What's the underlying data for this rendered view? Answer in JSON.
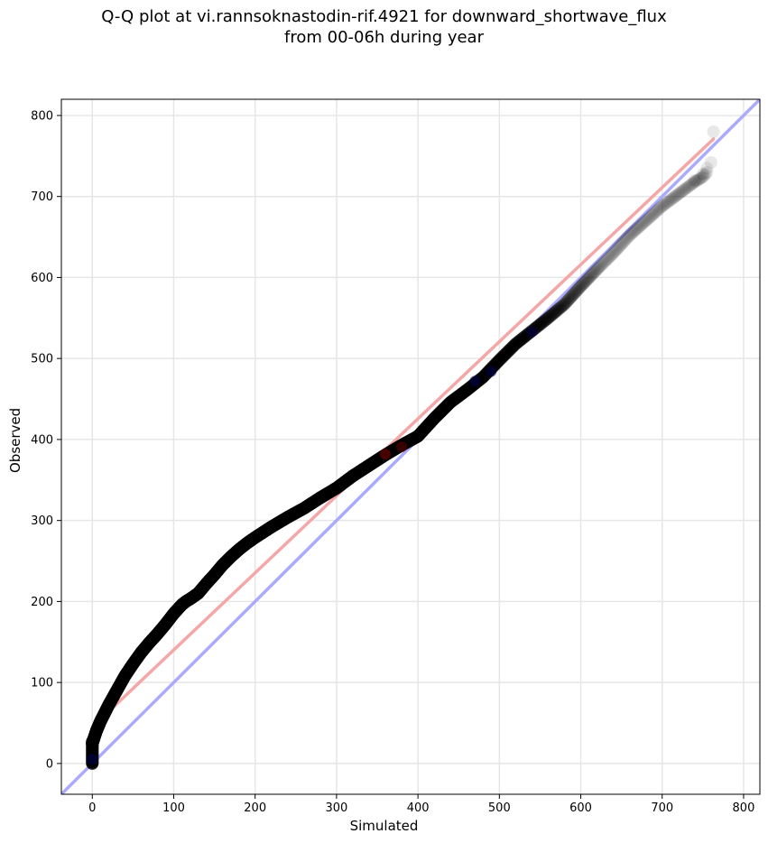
{
  "chart_data": {
    "type": "scatter",
    "title_lines": [
      "Q-Q plot at vi.rannsoknastodin-rif.4921 for downward_shortwave_flux",
      "from 00-06h during year"
    ],
    "xlabel": "Simulated",
    "ylabel": "Observed",
    "xlim": [
      -38,
      820
    ],
    "ylim": [
      -38,
      820
    ],
    "xticks": [
      0,
      100,
      200,
      300,
      400,
      500,
      600,
      700,
      800
    ],
    "yticks": [
      0,
      100,
      200,
      300,
      400,
      500,
      600,
      700,
      800
    ],
    "grid": true,
    "reference_lines": [
      {
        "name": "1:1",
        "color": "#aaaaff",
        "x": [
          -38,
          820
        ],
        "y": [
          -38,
          820
        ]
      },
      {
        "name": "fit",
        "color": "#f5a7a7",
        "x": [
          0,
          763
        ],
        "y": [
          45,
          771
        ]
      }
    ],
    "quantile_curve": {
      "x": [
        0,
        0,
        0,
        0,
        5,
        10,
        20,
        30,
        40,
        50,
        60,
        70,
        80,
        90,
        100,
        110,
        115,
        120,
        130,
        140,
        150,
        160,
        170,
        180,
        190,
        200,
        220,
        240,
        260,
        280,
        300,
        320,
        340,
        360,
        380,
        400,
        420,
        440,
        460,
        480,
        500,
        520,
        540,
        560,
        580,
        600,
        620,
        640,
        660,
        680,
        700,
        720,
        740,
        750,
        755,
        760,
        763
      ],
      "y": [
        0,
        8,
        16,
        25,
        40,
        52,
        72,
        90,
        108,
        123,
        137,
        149,
        160,
        172,
        185,
        196,
        200,
        203,
        210,
        222,
        233,
        245,
        255,
        264,
        272,
        279,
        292,
        304,
        315,
        328,
        340,
        355,
        368,
        381,
        393,
        404,
        426,
        446,
        461,
        477,
        498,
        518,
        534,
        550,
        567,
        589,
        610,
        630,
        652,
        670,
        688,
        703,
        718,
        724,
        730,
        740,
        780
      ]
    },
    "point_color": "#000000",
    "highlight_points": [
      {
        "x": 380,
        "y": 391,
        "color": "#5a0000"
      },
      {
        "x": 360,
        "y": 382,
        "color": "#7a0000"
      },
      {
        "x": 490,
        "y": 484,
        "color": "#00004a"
      },
      {
        "x": 470,
        "y": 472,
        "color": "#00004a"
      },
      {
        "x": 540,
        "y": 533,
        "color": "#000048"
      },
      {
        "x": 0,
        "y": 5,
        "color": "#000050"
      }
    ]
  }
}
